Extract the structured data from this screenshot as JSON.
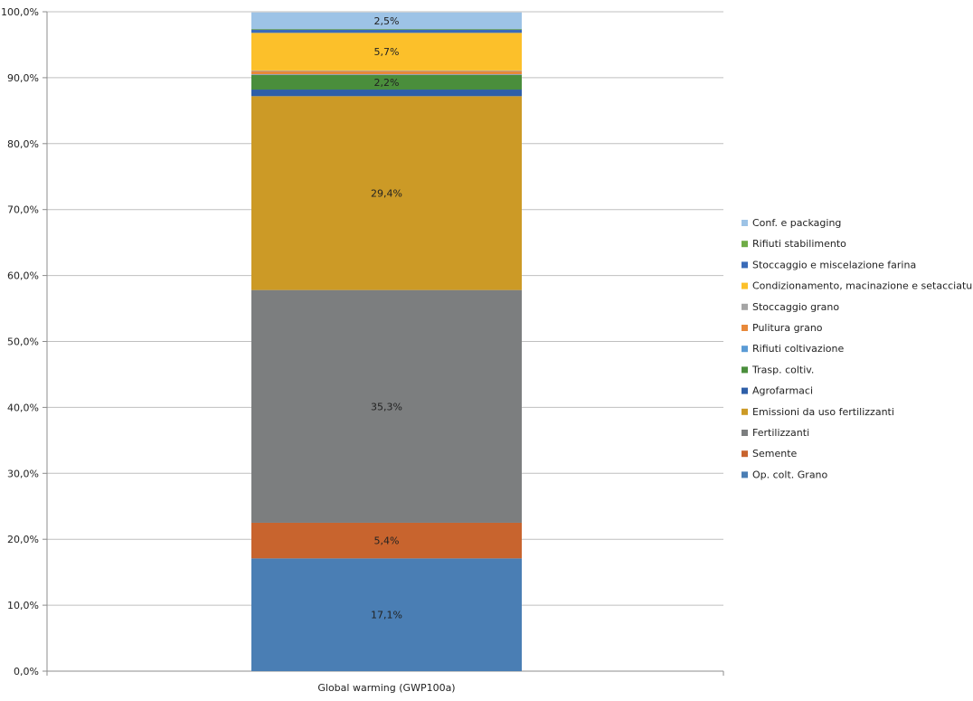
{
  "chart_data": {
    "type": "bar",
    "stacked": true,
    "title": "",
    "xlabel": "",
    "ylabel": "",
    "ylim": [
      0,
      100
    ],
    "yticks": [
      0,
      10,
      20,
      30,
      40,
      50,
      60,
      70,
      80,
      90,
      100
    ],
    "ytick_labels": [
      "0,0%",
      "10,0%",
      "20,0%",
      "30,0%",
      "40,0%",
      "50,0%",
      "60,0%",
      "70,0%",
      "80,0%",
      "90,0%",
      "100,0%"
    ],
    "categories": [
      "Global warming (GWP100a)"
    ],
    "grid": true,
    "legend_position": "right",
    "series": [
      {
        "name": "Op. colt. Grano",
        "values": [
          17.1
        ],
        "color": "#4a7eb4",
        "label": "17,1%"
      },
      {
        "name": "Semente",
        "values": [
          5.4
        ],
        "color": "#c8642e",
        "label": "5,4%"
      },
      {
        "name": "Fertilizzanti",
        "values": [
          35.3
        ],
        "color": "#7c7e7f",
        "label": "35,3%"
      },
      {
        "name": "Emissioni da uso fertilizzanti",
        "values": [
          29.4
        ],
        "color": "#cc9a26",
        "label": "29,4%"
      },
      {
        "name": "Agrofarmaci",
        "values": [
          1.0
        ],
        "color": "#2e5fa8",
        "label": ""
      },
      {
        "name": "Trasp. coltiv.",
        "values": [
          2.2
        ],
        "color": "#4a8e3c",
        "label": "2,2%"
      },
      {
        "name": "Rifiuti coltivazione",
        "values": [
          0.1
        ],
        "color": "#5b9bd5",
        "label": ""
      },
      {
        "name": "Pulitura grano",
        "values": [
          0.5
        ],
        "color": "#e8893a",
        "label": ""
      },
      {
        "name": "Stoccaggio grano",
        "values": [
          0.1
        ],
        "color": "#a5a5a5",
        "label": ""
      },
      {
        "name": "Condizionamento, macinazione e setacciatura",
        "values": [
          5.7
        ],
        "color": "#fcc02a",
        "label": "5,7%"
      },
      {
        "name": "Stoccaggio e miscelazione farina",
        "values": [
          0.5
        ],
        "color": "#3a6bb8",
        "label": ""
      },
      {
        "name": "Rifiuti stabilimento",
        "values": [
          0.1
        ],
        "color": "#6fac46",
        "label": ""
      },
      {
        "name": "Conf. e packaging",
        "values": [
          2.5
        ],
        "color": "#9dc3e6",
        "label": "2,5%"
      }
    ]
  }
}
